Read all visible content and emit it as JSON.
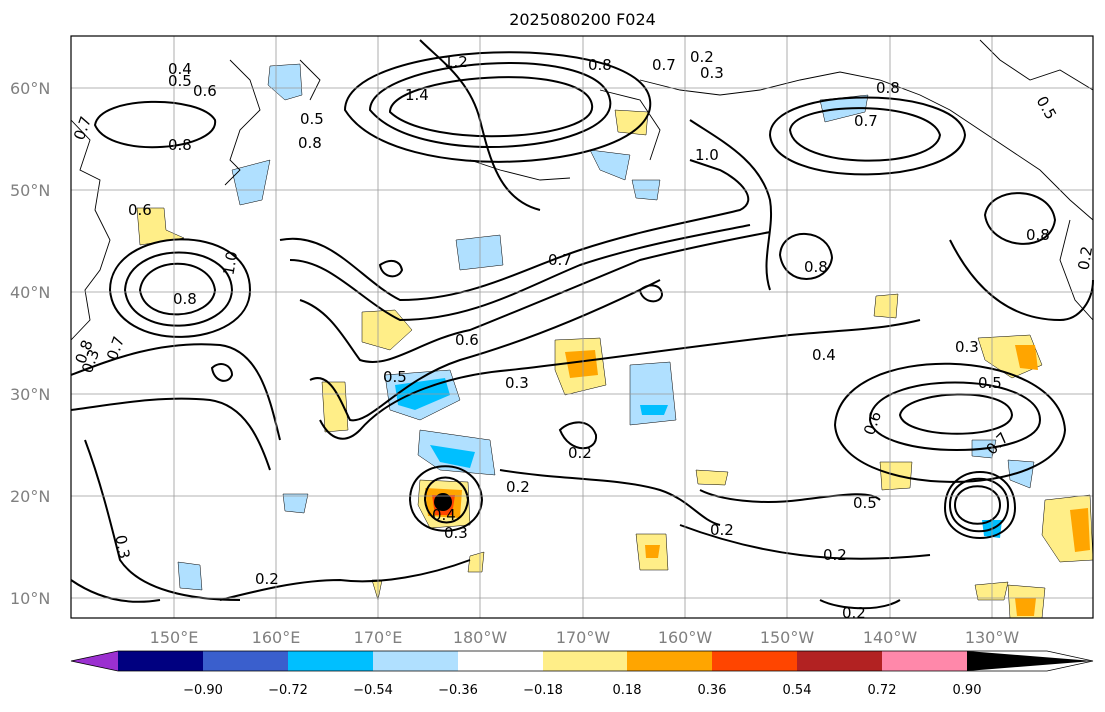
{
  "map": {
    "title": "2025080200 F024",
    "lat_labels": [
      "60°N",
      "50°N",
      "40°N",
      "30°N",
      "20°N",
      "10°N"
    ],
    "lon_labels": [
      "150°E",
      "160°E",
      "170°E",
      "180°W",
      "170°W",
      "160°W",
      "150°W",
      "140°W",
      "130°W"
    ],
    "contour_labels": [
      "0.4",
      "0.5",
      "0.6",
      "0.7",
      "0.8",
      "1.2",
      "1.4",
      "0.2",
      "0.3",
      "0.8",
      "0.7",
      "1.0",
      "0.8",
      "0.6",
      "1.0",
      "0.8",
      "0.7",
      "0.8",
      "0.8",
      "0.6",
      "0.4",
      "0.3",
      "0.5",
      "0.2",
      "0.2",
      "0.3",
      "0.5",
      "0.2",
      "0.2",
      "0.5",
      "0.6",
      "0.7",
      "0.3",
      "0.2",
      "0.2",
      "0.3",
      "0.5",
      "0.3",
      "0.8",
      "0.7",
      "0.2",
      "0.4",
      "0.5",
      "0.7",
      "0.8"
    ]
  },
  "colorbar": {
    "tick_labels": [
      "−0.90",
      "−0.72",
      "−0.54",
      "−0.36",
      "−0.18",
      "0.18",
      "0.36",
      "0.54",
      "0.72",
      "0.90"
    ],
    "colors": [
      "#9b30d0",
      "#000080",
      "#3a5fcd",
      "#00bfff",
      "#b0e0ff",
      "#ffffff",
      "#ffee88",
      "#ffa500",
      "#ff4500",
      "#b22222",
      "#ff88aa"
    ]
  }
}
